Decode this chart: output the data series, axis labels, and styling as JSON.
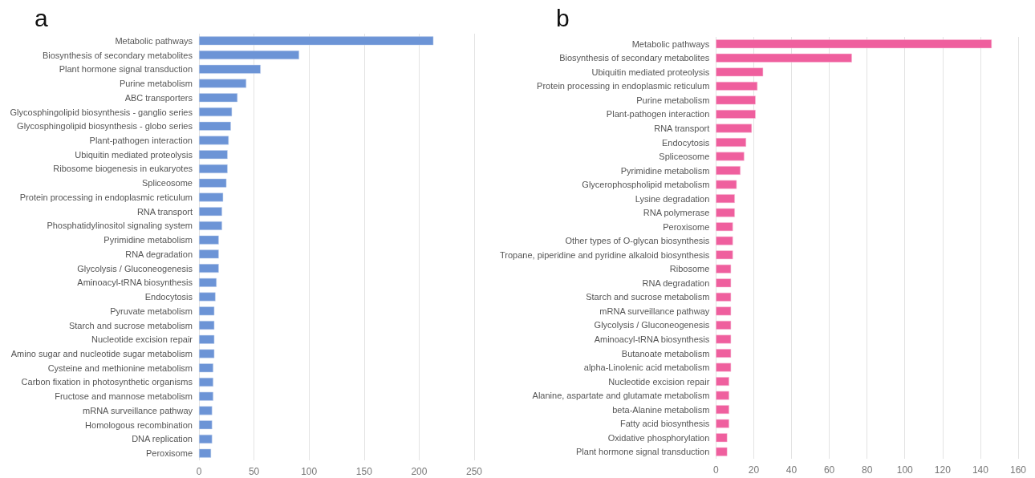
{
  "chart_data": [
    {
      "type": "bar",
      "orientation": "horizontal",
      "title": "a",
      "grid": "x",
      "categories": [
        "Metabolic pathways",
        "Biosynthesis of secondary metabolites",
        "Plant hormone signal transduction",
        "Purine metabolism",
        "ABC transporters",
        "Glycosphingolipid biosynthesis - ganglio series",
        "Glycosphingolipid biosynthesis - globo series",
        "Plant-pathogen interaction",
        "Ubiquitin mediated proteolysis",
        "Ribosome biogenesis in eukaryotes",
        "Spliceosome",
        "Protein processing in endoplasmic reticulum",
        "RNA transport",
        "Phosphatidylinositol signaling system",
        "Pyrimidine metabolism",
        "RNA degradation",
        "Glycolysis / Gluconeogenesis",
        "Aminoacyl-tRNA biosynthesis",
        "Endocytosis",
        "Pyruvate metabolism",
        "Starch and sucrose metabolism",
        "Nucleotide excision repair",
        "Amino sugar and nucleotide sugar metabolism",
        "Cysteine and methionine metabolism",
        "Carbon fixation in photosynthetic organisms",
        "Fructose and mannose metabolism",
        "mRNA surveillance pathway",
        "Homologous recombination",
        "DNA replication",
        "Peroxisome"
      ],
      "series": [
        {
          "color": "#6c94d6",
          "values": [
            213,
            91,
            56,
            43,
            35,
            30,
            29,
            27,
            26,
            26,
            25,
            22,
            21,
            21,
            18,
            18,
            18,
            16,
            15,
            14,
            14,
            14,
            14,
            13,
            13,
            13,
            12,
            12,
            12,
            11
          ]
        }
      ],
      "xlim": [
        0,
        250
      ],
      "xticks": [
        0,
        50,
        100,
        150,
        200,
        250
      ]
    },
    {
      "type": "bar",
      "orientation": "horizontal",
      "title": "b",
      "grid": "x",
      "categories": [
        "Metabolic pathways",
        "Biosynthesis of secondary metabolites",
        "Ubiquitin mediated proteolysis",
        "Protein processing in endoplasmic reticulum",
        "Purine metabolism",
        "Plant-pathogen interaction",
        "RNA transport",
        "Endocytosis",
        "Spliceosome",
        "Pyrimidine metabolism",
        "Glycerophospholipid metabolism",
        "Lysine degradation",
        "RNA polymerase",
        "Peroxisome",
        "Other types of O-glycan biosynthesis",
        "Tropane, piperidine and pyridine alkaloid biosynthesis",
        "Ribosome",
        "RNA degradation",
        "Starch and sucrose metabolism",
        "mRNA surveillance pathway",
        "Glycolysis / Gluconeogenesis",
        "Aminoacyl-tRNA biosynthesis",
        "Butanoate metabolism",
        "alpha-Linolenic acid metabolism",
        "Nucleotide excision repair",
        "Alanine, aspartate and glutamate metabolism",
        "beta-Alanine metabolism",
        "Fatty acid biosynthesis",
        "Oxidative phosphorylation",
        "Plant hormone signal transduction"
      ],
      "series": [
        {
          "color": "#ef5f9e",
          "values": [
            146,
            72,
            25,
            22,
            21,
            21,
            19,
            16,
            15,
            13,
            11,
            10,
            10,
            9,
            9,
            9,
            8,
            8,
            8,
            8,
            8,
            8,
            8,
            8,
            7,
            7,
            7,
            7,
            6,
            6
          ]
        }
      ],
      "xlim": [
        0,
        160
      ],
      "xticks": [
        0,
        20,
        40,
        60,
        80,
        100,
        120,
        140,
        160
      ]
    }
  ]
}
